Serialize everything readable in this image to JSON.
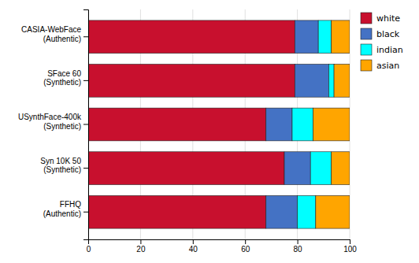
{
  "chart_data": {
    "type": "bar",
    "orientation": "horizontal",
    "stacked": true,
    "categories": [
      "CASIA-WebFace\n(Authentic)",
      "SFace 60\n(Synthetic)",
      "USynthFace-400k\n(Synthetic)",
      "Syn 10K 50\n(Synthetic)",
      "FFHQ\n(Authentic)"
    ],
    "series": [
      {
        "name": "white",
        "color": "#C8102E",
        "values": [
          79,
          79,
          68,
          75,
          68
        ]
      },
      {
        "name": "black",
        "color": "#4472C4",
        "values": [
          9,
          13,
          10,
          10,
          12
        ]
      },
      {
        "name": "indian",
        "color": "#00FFFF",
        "values": [
          5,
          2,
          8,
          8,
          7
        ]
      },
      {
        "name": "asian",
        "color": "#FFA500",
        "values": [
          7,
          6,
          14,
          7,
          13
        ]
      }
    ],
    "xlim": [
      0,
      100
    ],
    "xticks": [
      0,
      20,
      40,
      60,
      80,
      100
    ],
    "grid": true,
    "legend": "right"
  }
}
